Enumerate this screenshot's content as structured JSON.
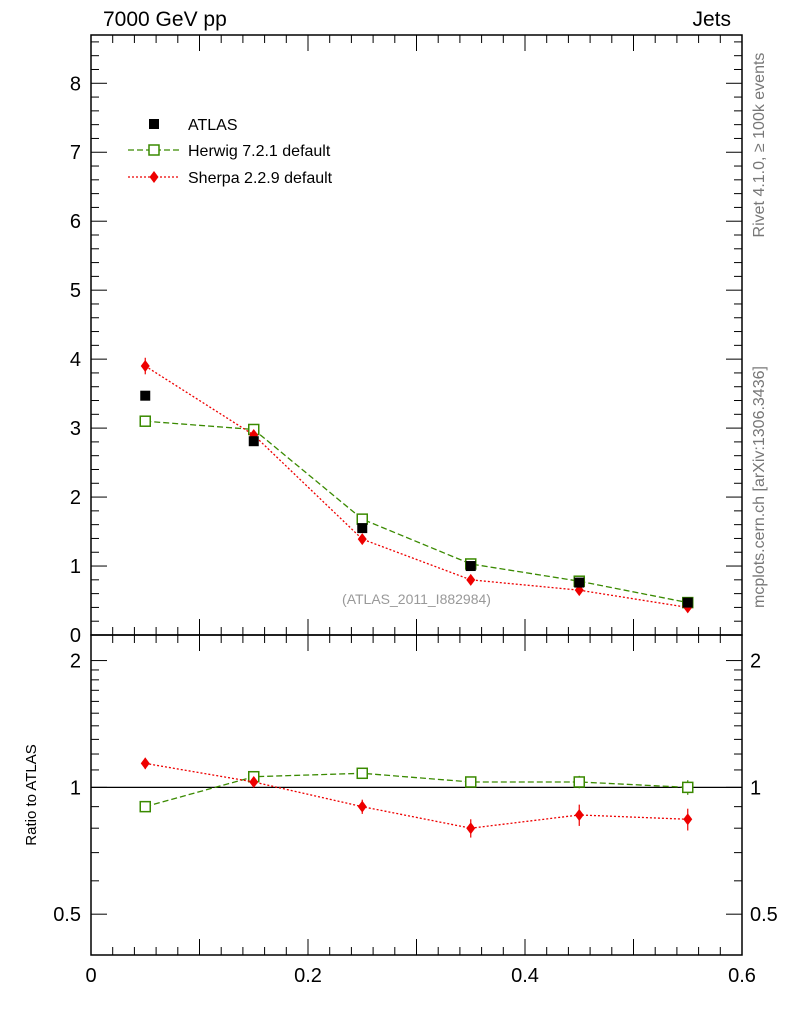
{
  "header": {
    "left": "7000 GeV pp",
    "right": "Jets"
  },
  "side_labels": {
    "rivet": "Rivet 4.1.0, ≥ 100k events",
    "mcplots": "mcplots.cern.ch [arXiv:1306.3436]"
  },
  "colors": {
    "atlas": "#000000",
    "herwig": "#3a8a00",
    "sherpa": "#ee0000",
    "watermark": "#999999"
  },
  "chart_data": [
    {
      "type": "scatter",
      "panel": "main",
      "title": "",
      "xlabel": "",
      "ylabel": "",
      "xlim": [
        0,
        0.6
      ],
      "ylim": [
        0,
        8.7
      ],
      "yticks": [
        0,
        1,
        2,
        3,
        4,
        5,
        6,
        7,
        8
      ],
      "yticklabels": [
        "0",
        "1",
        "2",
        "3",
        "4",
        "5",
        "6",
        "7",
        "8"
      ],
      "annotation": "(ATLAS_2011_I882984)",
      "x": [
        0.05,
        0.15,
        0.25,
        0.35,
        0.45,
        0.55
      ],
      "series": [
        {
          "name": "ATLAS",
          "style": "square-filled",
          "values": [
            3.47,
            2.81,
            1.55,
            1.0,
            0.76,
            0.47
          ],
          "errors": [
            0.05,
            0.04,
            0.03,
            0.02,
            0.02,
            0.02
          ]
        },
        {
          "name": "Herwig 7.2.1 default",
          "style": "square-open-dashed",
          "values": [
            3.1,
            2.98,
            1.68,
            1.03,
            0.78,
            0.47
          ],
          "errors": [
            0.08,
            0.05,
            0.04,
            0.03,
            0.03,
            0.02
          ]
        },
        {
          "name": "Sherpa 2.2.9 default",
          "style": "diamond-dotted",
          "values": [
            3.9,
            2.9,
            1.39,
            0.8,
            0.65,
            0.4
          ],
          "errors": [
            0.12,
            0.07,
            0.05,
            0.04,
            0.03,
            0.03
          ]
        }
      ]
    },
    {
      "type": "scatter",
      "panel": "ratio",
      "ylabel": "Ratio to ATLAS",
      "xlim": [
        0,
        0.6
      ],
      "ylim": [
        0.4,
        2.3
      ],
      "yscale": "log",
      "reference": 1,
      "yticklabels": [
        "0.5",
        "1",
        "2"
      ],
      "xticklabels": [
        "0",
        "0.2",
        "0.4",
        "0.6"
      ],
      "x": [
        0.05,
        0.15,
        0.25,
        0.35,
        0.45,
        0.55
      ],
      "series": [
        {
          "name": "Herwig 7.2.1 default",
          "style": "square-open-dashed",
          "values": [
            0.9,
            1.06,
            1.08,
            1.03,
            1.03,
            1.0
          ],
          "errors": [
            0.02,
            0.025,
            0.03,
            0.03,
            0.035,
            0.04
          ]
        },
        {
          "name": "Sherpa 2.2.9 default",
          "style": "diamond-dotted",
          "values": [
            1.14,
            1.03,
            0.9,
            0.8,
            0.86,
            0.84
          ],
          "errors": [
            0.035,
            0.025,
            0.035,
            0.04,
            0.05,
            0.05
          ]
        }
      ]
    }
  ]
}
